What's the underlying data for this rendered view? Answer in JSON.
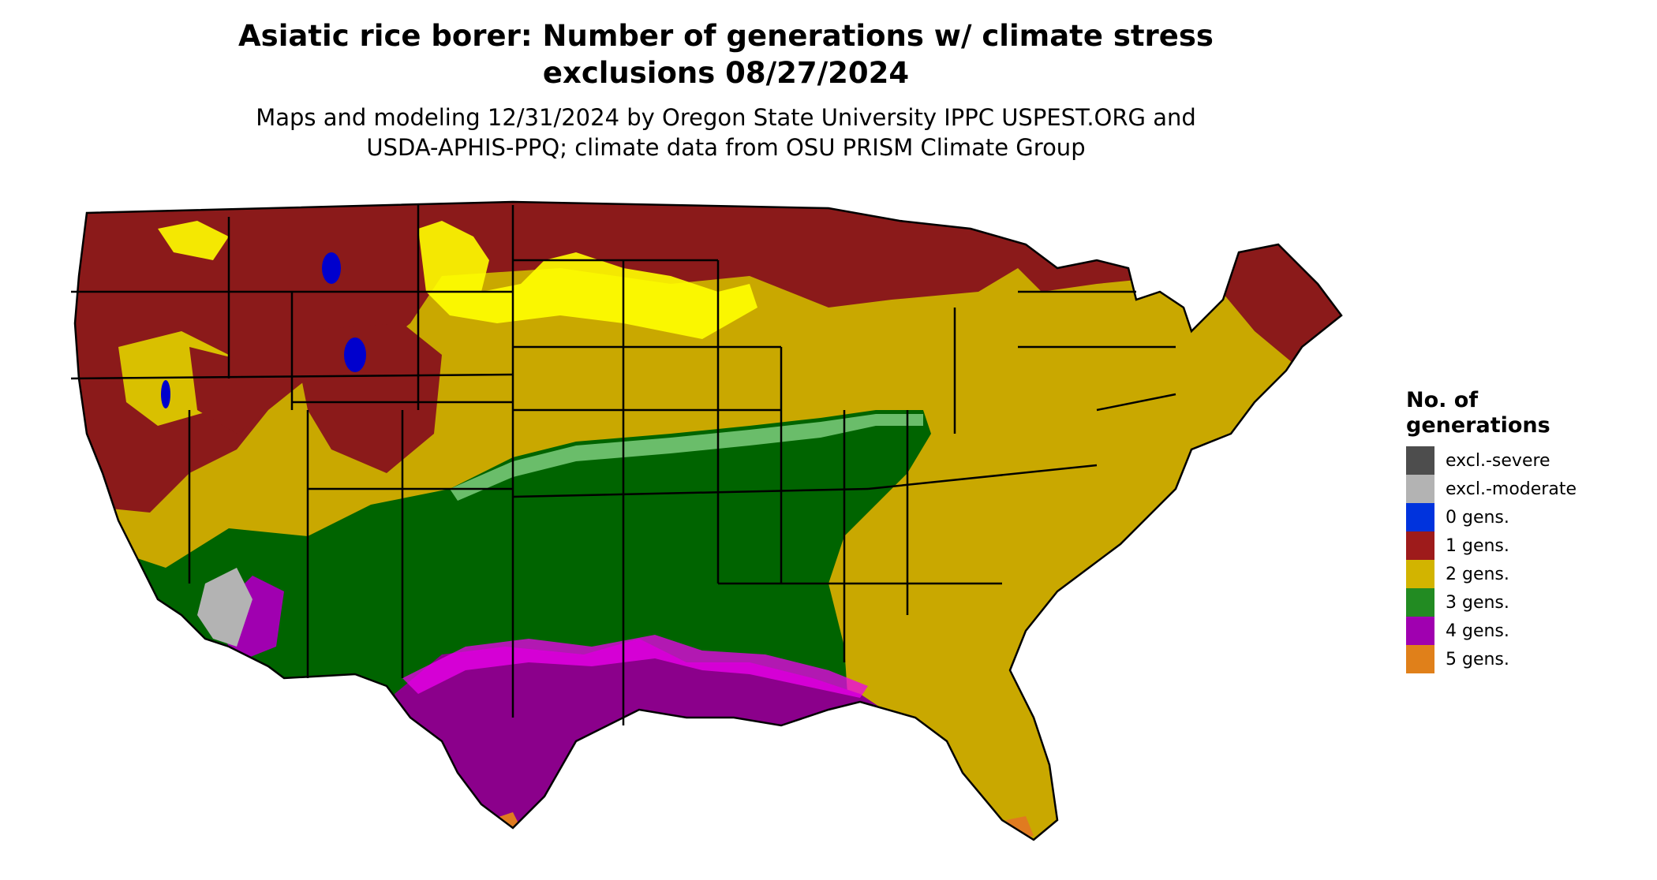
{
  "title": {
    "line1": "Asiatic rice borer: Number of generations w/ climate stress",
    "line2": "exclusions 08/27/2024"
  },
  "subtitle": {
    "line1": "Maps and modeling 12/31/2024 by Oregon State University IPPC USPEST.ORG and",
    "line2": "USDA-APHIS-PPQ; climate data from OSU PRISM Climate Group"
  },
  "legend": {
    "title_line1": "No. of",
    "title_line2": "generations",
    "items": [
      {
        "label": "excl.-severe",
        "color": "#4d4d4d"
      },
      {
        "label": "excl.-moderate",
        "color": "#b3b3b3"
      },
      {
        "label": "0 gens.",
        "color": "#0033dd"
      },
      {
        "label": "1 gens.",
        "color": "#9e1b1b"
      },
      {
        "label": "2 gens.",
        "color": "#d2b400"
      },
      {
        "label": "3 gens.",
        "color": "#228b22"
      },
      {
        "label": "4 gens.",
        "color": "#a000b0"
      },
      {
        "label": "5 gens.",
        "color": "#e0801a"
      }
    ]
  },
  "map": {
    "region": "Contiguous United States",
    "zone_colors": {
      "one_gen": "#8b1a1a",
      "two_gen": "#c9a800",
      "two_gen_light": "#ffff00",
      "three_gen": "#006400",
      "three_gen_light": "#7ccd7c",
      "four_gen": "#8b008b",
      "four_gen_bright": "#ee00ee",
      "five_gen": "#e07b20",
      "zero_gen": "#0000cd",
      "excl_moderate": "#b3b3b3"
    }
  }
}
